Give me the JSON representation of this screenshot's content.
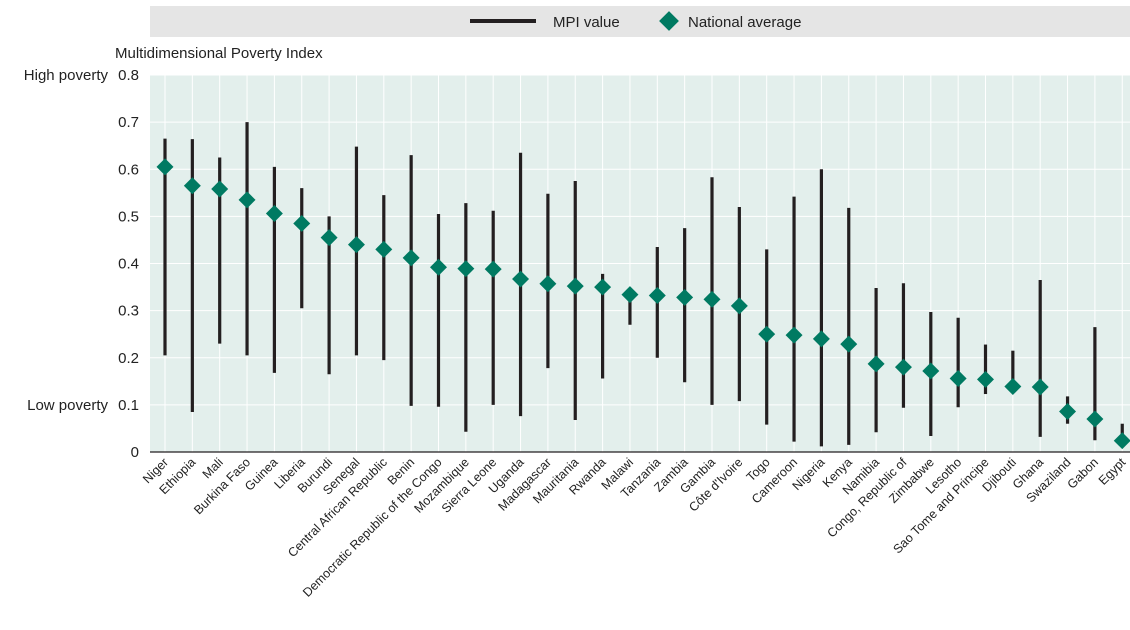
{
  "chart_data": {
    "type": "scatter",
    "ylabel": "Multidimensional Poverty Index",
    "ylim": [
      0,
      0.8
    ],
    "yticks": [
      0,
      0.1,
      0.2,
      0.3,
      0.4,
      0.5,
      0.6,
      0.7,
      0.8
    ],
    "ytick_labels": [
      "0",
      "0.1",
      "0.2",
      "0.3",
      "0.4",
      "0.5",
      "0.6",
      "0.7",
      "0.8"
    ],
    "y_annotations": [
      {
        "value": 0.8,
        "text": "High poverty"
      },
      {
        "value": 0.1,
        "text": "Low poverty"
      }
    ],
    "grid": true,
    "legend_position": "top",
    "colors": {
      "range": "#231f20",
      "average": "#007a62",
      "plot_bg": "#e3efec",
      "legend_bg": "#e5e5e5",
      "grid": "#ffffff"
    },
    "series": [
      {
        "name": "MPI value",
        "kind": "range"
      },
      {
        "name": "National average",
        "kind": "marker"
      }
    ],
    "categories": [
      "Niger",
      "Ethiopia",
      "Mali",
      "Burkina Faso",
      "Guinea",
      "Liberia",
      "Burundi",
      "Senegal",
      "Central African Republic",
      "Benin",
      "Democratic Republic of the Congo",
      "Mozambique",
      "Sierra Leone",
      "Uganda",
      "Madagascar",
      "Mauritania",
      "Rwanda",
      "Malawi",
      "Tanzania",
      "Zambia",
      "Gambia",
      "Côte d'Ivoire",
      "Togo",
      "Cameroon",
      "Nigeria",
      "Kenya",
      "Namibia",
      "Congo, Republic of",
      "Zimbabwe",
      "Lesotho",
      "Sao Tome and Principe",
      "Djibouti",
      "Ghana",
      "Swaziland",
      "Gabon",
      "Egypt"
    ],
    "range_min": [
      0.205,
      0.085,
      0.23,
      0.205,
      0.168,
      0.305,
      0.165,
      0.205,
      0.195,
      0.098,
      0.096,
      0.043,
      0.1,
      0.076,
      0.178,
      0.068,
      0.156,
      0.27,
      0.2,
      0.148,
      0.1,
      0.108,
      0.058,
      0.022,
      0.012,
      0.015,
      0.042,
      0.094,
      0.034,
      0.095,
      0.123,
      0.138,
      0.032,
      0.06,
      0.025,
      0.017
    ],
    "range_max": [
      0.665,
      0.664,
      0.625,
      0.7,
      0.605,
      0.56,
      0.5,
      0.648,
      0.545,
      0.63,
      0.505,
      0.528,
      0.512,
      0.635,
      0.548,
      0.575,
      0.378,
      0.333,
      0.435,
      0.475,
      0.583,
      0.52,
      0.43,
      0.542,
      0.6,
      0.518,
      0.348,
      0.358,
      0.297,
      0.285,
      0.228,
      0.215,
      0.365,
      0.118,
      0.265,
      0.06
    ],
    "average": [
      0.605,
      0.565,
      0.558,
      0.535,
      0.506,
      0.485,
      0.455,
      0.44,
      0.43,
      0.412,
      0.392,
      0.389,
      0.388,
      0.367,
      0.357,
      0.352,
      0.35,
      0.334,
      0.332,
      0.328,
      0.324,
      0.31,
      0.25,
      0.248,
      0.24,
      0.229,
      0.187,
      0.18,
      0.172,
      0.156,
      0.154,
      0.139,
      0.138,
      0.086,
      0.07,
      0.024
    ]
  }
}
